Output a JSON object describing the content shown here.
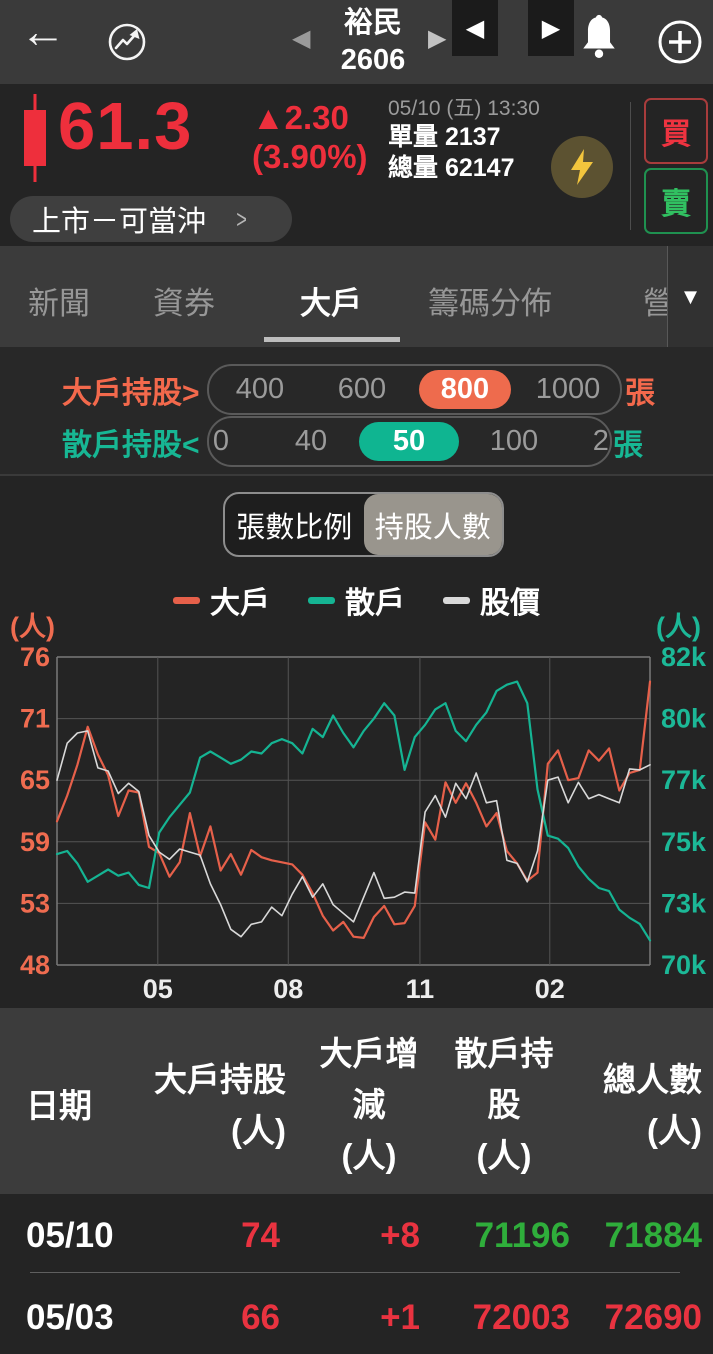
{
  "header": {
    "title_line1": "裕民",
    "title_line2": "2606"
  },
  "quote": {
    "price": "61.3",
    "change": "▲2.30",
    "change_pct": "(3.90%)",
    "datetime": "05/10 (五) 13:30",
    "unit_label": "單量",
    "unit_value": "2137",
    "total_label": "總量",
    "total_value": "62147",
    "market_tag": "上市－可當沖",
    "buy_label": "買",
    "sell_label": "賣"
  },
  "tabs": {
    "items": [
      {
        "label": "新聞"
      },
      {
        "label": "資券"
      },
      {
        "label": "大戶"
      },
      {
        "label": "籌碼分佈"
      },
      {
        "label": "營"
      }
    ],
    "active": "大戶",
    "caret": "▼"
  },
  "filters": {
    "row1": {
      "label": "大戶持股>",
      "options": [
        "400",
        "600",
        "800",
        "1000"
      ],
      "selected": "800",
      "unit": "張"
    },
    "row2": {
      "label": "散戶持股<",
      "options": [
        "0",
        "40",
        "50",
        "100",
        "200"
      ],
      "selected": "50",
      "unit": "張"
    }
  },
  "toggle": {
    "option1": "張數比例",
    "option2": "持股人數",
    "selected": "持股人數"
  },
  "legend": {
    "items": [
      {
        "label": "大戶",
        "color": "#e6604a"
      },
      {
        "label": "散戶",
        "color": "#15b493"
      },
      {
        "label": "股價",
        "color": "#d9d9d9"
      }
    ]
  },
  "chart_data": {
    "type": "line",
    "left_axis": {
      "label": "(人)",
      "ticks": [
        76,
        71,
        65,
        59,
        53,
        48
      ],
      "color": "#ef6c50"
    },
    "right_axis": {
      "label": "(人)",
      "ticks": [
        82,
        80,
        77,
        75,
        73,
        70
      ],
      "tick_suffix": "k",
      "color": "#1cb897"
    },
    "x_axis": {
      "labels": [
        "05",
        "08",
        "11",
        "02"
      ],
      "positions": [
        0.17,
        0.39,
        0.612,
        0.831
      ]
    },
    "grid": true,
    "series": [
      {
        "name": "大戶",
        "axis": "left",
        "color": "#e6604a",
        "width": 2.2,
        "values": [
          61,
          63.5,
          66.5,
          70.2,
          67.5,
          65.5,
          61.5,
          64,
          63.8,
          58.5,
          57.9,
          55.6,
          57,
          61.8,
          57.6,
          60.5,
          56.2,
          57.8,
          55.8,
          58.2,
          57.5,
          57.2,
          57,
          56.8,
          55.8,
          54,
          52,
          50.8,
          51.5,
          50.3,
          50.2,
          51.9,
          52.8,
          51.3,
          51.4,
          52.8,
          60.9,
          59.2,
          64.8,
          62.8,
          64.7,
          62.8,
          60.5,
          61.8,
          58.1,
          56.9,
          55.2,
          56,
          66.6,
          67.9,
          65,
          65.2,
          67.9,
          66.9,
          68.1,
          64,
          65.7,
          66,
          74
        ]
      },
      {
        "name": "散戶",
        "axis": "right",
        "color": "#15b493",
        "width": 2.2,
        "values": [
          74.6,
          74.7,
          74.3,
          73.7,
          73.9,
          74.1,
          73.9,
          74,
          73.6,
          73.5,
          75.3,
          75.8,
          76.2,
          76.6,
          78.1,
          78.4,
          78.1,
          77.8,
          78,
          78.4,
          78.3,
          78.8,
          79,
          78.8,
          78.3,
          79.5,
          79.1,
          80.1,
          79.3,
          78.6,
          79.4,
          80,
          80.5,
          80.1,
          77.5,
          79.1,
          79.7,
          80.3,
          80.5,
          79.4,
          78.9,
          79.7,
          80.2,
          80.9,
          81.1,
          81.2,
          80.5,
          76.7,
          75.2,
          75.1,
          74.8,
          74.2,
          73.8,
          73.5,
          73.4,
          72.7,
          72.3,
          72,
          71.2
        ]
      },
      {
        "name": "股價",
        "axis": "left",
        "color": "#d9d9d9",
        "width": 1.6,
        "values": [
          65,
          68.6,
          69.6,
          69.8,
          66.2,
          65.9,
          63.7,
          64.7,
          63.9,
          59.6,
          58,
          57.3,
          58.3,
          58,
          57.7,
          54.9,
          52.9,
          50.9,
          50.3,
          51.3,
          51.5,
          52.7,
          52,
          53.9,
          55.6,
          53.6,
          54.9,
          52.9,
          52.2,
          51.5,
          53.6,
          56,
          53.5,
          53.6,
          54.1,
          54,
          61.9,
          63.5,
          61.4,
          64.7,
          63.2,
          65.7,
          62.8,
          63,
          57.2,
          56.9,
          55.1,
          58.1,
          65,
          65.3,
          62.8,
          64.8,
          63.2,
          63.6,
          63.2,
          62.8,
          66.1,
          66,
          66.5
        ]
      }
    ]
  },
  "table": {
    "headers": [
      [
        "日期"
      ],
      [
        "大戶持股",
        "(人)"
      ],
      [
        "大戶增",
        "減",
        "(人)"
      ],
      [
        "散戶持",
        "股",
        "(人)"
      ],
      [
        "總人數",
        "(人)"
      ]
    ],
    "rows": [
      {
        "date": "05/10",
        "cells": [
          {
            "v": "74",
            "c": "red"
          },
          {
            "v": "+8",
            "c": "red"
          },
          {
            "v": "71196",
            "c": "green"
          },
          {
            "v": "71884",
            "c": "green"
          }
        ]
      },
      {
        "date": "05/03",
        "cells": [
          {
            "v": "66",
            "c": "red"
          },
          {
            "v": "+1",
            "c": "red"
          },
          {
            "v": "72003",
            "c": "red"
          },
          {
            "v": "72690",
            "c": "red"
          }
        ]
      }
    ]
  }
}
